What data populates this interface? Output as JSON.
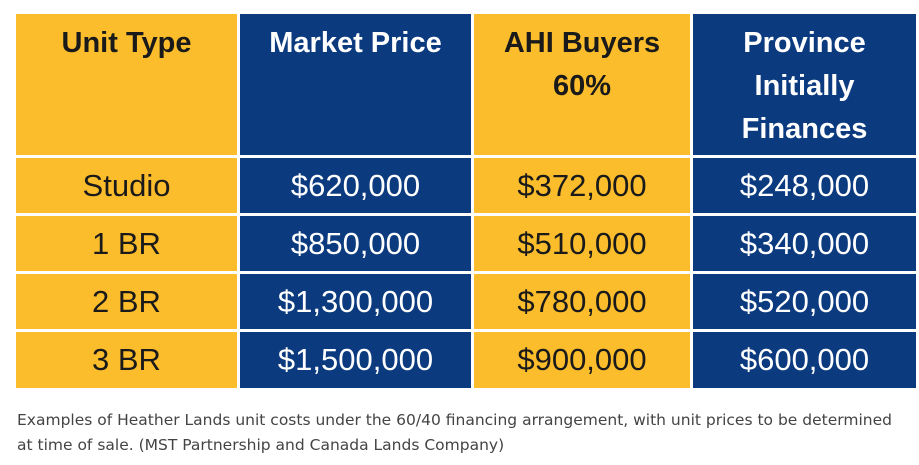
{
  "table": {
    "headers": [
      "Unit Type",
      "Market Price",
      "AHI Buyers\n60%",
      "Province\nInitially\nFinances"
    ],
    "rows": [
      [
        "Studio",
        "$620,000",
        "$372,000",
        "$248,000"
      ],
      [
        "1 BR",
        "$850,000",
        "$510,000",
        "$340,000"
      ],
      [
        "2 BR",
        "$1,300,000",
        "$780,000",
        "$520,000"
      ],
      [
        "3 BR",
        "$1,500,000",
        "$900,000",
        "$600,000"
      ]
    ],
    "colors": {
      "gold": "#fbbd2c",
      "navy": "#0b3a7e"
    }
  },
  "caption": "Examples of Heather Lands unit costs under the 60/40 financing arrangement, with unit prices to be determined at time of sale. (MST Partnership and Canada Lands Company)"
}
